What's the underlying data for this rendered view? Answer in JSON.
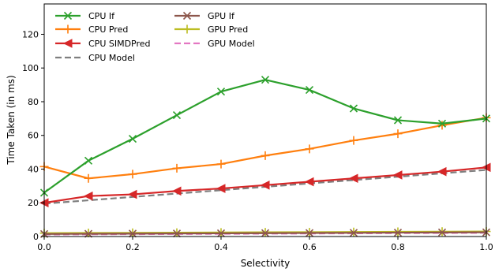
{
  "chart_data": {
    "type": "line",
    "title": "",
    "xlabel": "Selectivity",
    "ylabel": "Time Taken (in ms)",
    "xlim": [
      0.0,
      1.0
    ],
    "ylim": [
      0,
      138
    ],
    "xticks": [
      "0.0",
      "0.2",
      "0.4",
      "0.6",
      "0.8",
      "1.0"
    ],
    "yticks": [
      "0",
      "20",
      "40",
      "60",
      "80",
      "100",
      "120"
    ],
    "grid": false,
    "legend_position": "top-left",
    "x": [
      0.0,
      0.1,
      0.2,
      0.3,
      0.4,
      0.5,
      0.6,
      0.7,
      0.8,
      0.9,
      1.0
    ],
    "series": [
      {
        "name": "CPU If",
        "color": "#2ca02c",
        "marker": "x",
        "dash": false,
        "values": [
          26,
          45,
          58,
          72,
          86,
          93,
          87,
          76,
          69,
          67,
          70
        ]
      },
      {
        "name": "CPU Pred",
        "color": "#ff7f0e",
        "marker": "plus",
        "dash": false,
        "values": [
          41.5,
          34.5,
          37,
          40.5,
          43,
          48,
          52,
          57,
          61,
          66,
          70.5
        ]
      },
      {
        "name": "CPU SIMDPred",
        "color": "#d62728",
        "marker": "triangle-left",
        "dash": false,
        "values": [
          20,
          24,
          25,
          27,
          28.5,
          30.5,
          32.5,
          34.5,
          36.5,
          38.5,
          41
        ]
      },
      {
        "name": "CPU Model",
        "color": "#7f7f7f",
        "marker": "none",
        "dash": true,
        "values": [
          19.5,
          21.5,
          23.5,
          25.5,
          27.5,
          29.5,
          31.5,
          33.5,
          35.5,
          37.5,
          39.5
        ]
      },
      {
        "name": "GPU If",
        "color": "#8c564b",
        "marker": "x",
        "dash": false,
        "values": [
          1.5,
          1.6,
          1.7,
          1.8,
          1.9,
          2.0,
          2.1,
          2.2,
          2.3,
          2.4,
          2.5
        ]
      },
      {
        "name": "GPU Pred",
        "color": "#bcbd22",
        "marker": "plus",
        "dash": false,
        "values": [
          2.0,
          2.1,
          2.2,
          2.3,
          2.4,
          2.5,
          2.6,
          2.7,
          2.8,
          2.9,
          3.0
        ]
      },
      {
        "name": "GPU Model",
        "color": "#e377c2",
        "marker": "none",
        "dash": true,
        "values": [
          1.2,
          1.3,
          1.4,
          1.5,
          1.6,
          1.7,
          1.8,
          1.9,
          2.0,
          2.1,
          2.2
        ]
      }
    ]
  }
}
